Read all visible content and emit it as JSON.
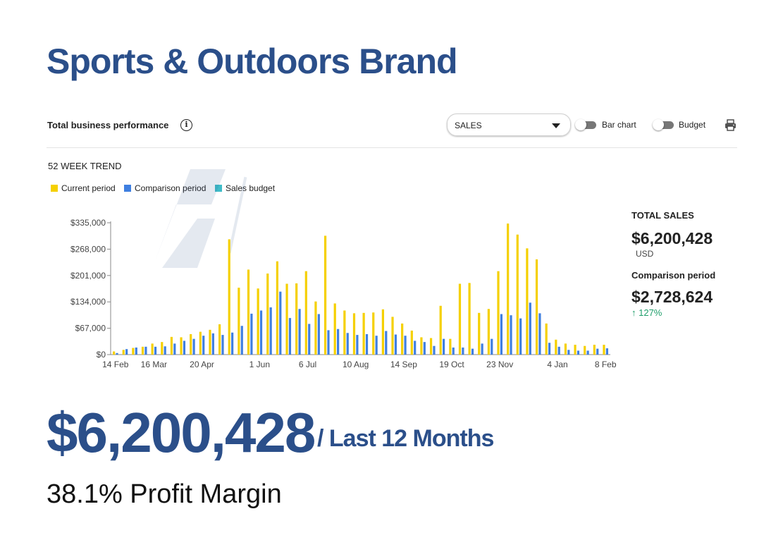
{
  "brand_title": "Sports & Outdoors Brand",
  "panel": {
    "title": "Total business performance",
    "info_icon_glyph": "i",
    "metric_select": {
      "selected": "SALES"
    },
    "bar_chart_toggle_label": "Bar chart",
    "budget_toggle_label": "Budget",
    "print_icon": "print-icon"
  },
  "trend_label": "52 WEEK TREND",
  "summary": {
    "total_label": "TOTAL SALES",
    "total_value": "$6,200,428",
    "total_unit": "USD",
    "comparison_label": "Comparison period",
    "comparison_value": "$2,728,624",
    "change": "↑ 127%",
    "change_color": "#1e9e6a"
  },
  "headline": {
    "value": "$6,200,428",
    "period": "/ Last 12 Months",
    "profit_margin": "38.1% Profit Margin"
  },
  "colors": {
    "brand": "#2b4f8a",
    "current": "#f5d000",
    "comparison": "#3f7fe0",
    "budget": "#3fbcc8"
  },
  "chart_data": {
    "type": "bar",
    "legend": [
      {
        "name": "Current period",
        "color": "#f5d000"
      },
      {
        "name": "Comparison period",
        "color": "#3f7fe0"
      },
      {
        "name": "Sales budget",
        "color": "#3fbcc8"
      }
    ],
    "y_ticks": [
      {
        "value": 0,
        "label": "$0"
      },
      {
        "value": 67000,
        "label": "$67,000"
      },
      {
        "value": 134000,
        "label": "$134,000"
      },
      {
        "value": 201000,
        "label": "$201,000"
      },
      {
        "value": 268000,
        "label": "$268,000"
      },
      {
        "value": 335000,
        "label": "$335,000"
      }
    ],
    "ylim": [
      0,
      335000
    ],
    "x_ticks": [
      {
        "week": 0,
        "label": "14 Feb"
      },
      {
        "week": 4,
        "label": "16 Mar"
      },
      {
        "week": 9,
        "label": "20 Apr"
      },
      {
        "week": 15,
        "label": "1 Jun"
      },
      {
        "week": 20,
        "label": "6 Jul"
      },
      {
        "week": 25,
        "label": "10 Aug"
      },
      {
        "week": 30,
        "label": "14 Sep"
      },
      {
        "week": 35,
        "label": "19 Oct"
      },
      {
        "week": 40,
        "label": "23 Nov"
      },
      {
        "week": 46,
        "label": "4 Jan"
      },
      {
        "week": 51,
        "label": "8 Feb"
      }
    ],
    "series": [
      {
        "name": "Current period",
        "values": [
          8000,
          12000,
          17000,
          20000,
          28000,
          32000,
          45000,
          44000,
          52000,
          58000,
          63000,
          77000,
          293000,
          170000,
          216000,
          168000,
          206000,
          237000,
          180000,
          181000,
          212000,
          135000,
          302000,
          130000,
          112000,
          105000,
          106000,
          107000,
          115000,
          96000,
          79000,
          61000,
          44000,
          42000,
          124000,
          40000,
          180000,
          182000,
          106000,
          116000,
          212000,
          333000,
          305000,
          270000,
          242000,
          79000,
          38000,
          28000,
          25000,
          22000,
          25000,
          25000
        ]
      },
      {
        "name": "Comparison period",
        "values": [
          4000,
          14000,
          18000,
          20000,
          20000,
          21000,
          28000,
          35000,
          40000,
          48000,
          54000,
          50000,
          56000,
          73000,
          104000,
          112000,
          120000,
          160000,
          93000,
          116000,
          78000,
          103000,
          62000,
          65000,
          55000,
          50000,
          52000,
          48000,
          60000,
          51000,
          48000,
          35000,
          32000,
          22000,
          40000,
          18000,
          18000,
          15000,
          28000,
          40000,
          103000,
          100000,
          92000,
          132000,
          105000,
          30000,
          20000,
          12000,
          10000,
          10000,
          15000,
          16000
        ]
      },
      {
        "name": "Sales budget",
        "values": []
      }
    ]
  }
}
